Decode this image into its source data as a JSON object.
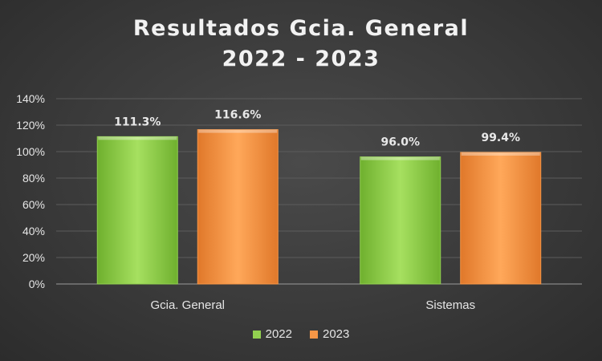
{
  "chart_data": {
    "type": "bar",
    "title": [
      "Resultados Gcia. General",
      "2022 - 2023"
    ],
    "categories": [
      "Gcia. General",
      "Sistemas"
    ],
    "series": [
      {
        "name": "2022",
        "values": [
          1.113,
          0.96
        ],
        "labels": [
          "111.3%",
          "96.0%"
        ],
        "color": "#92d050"
      },
      {
        "name": "2023",
        "values": [
          1.166,
          0.994
        ],
        "labels": [
          "116.6%",
          "99.4%"
        ],
        "color": "#f79646"
      }
    ],
    "ylim": [
      0,
      1.4
    ],
    "yticks": [
      0,
      0.2,
      0.4,
      0.6,
      0.8,
      1.0,
      1.2,
      1.4
    ],
    "ytick_labels": [
      "0%",
      "20%",
      "40%",
      "60%",
      "80%",
      "100%",
      "120%",
      "140%"
    ],
    "grid": true,
    "legend_position": "bottom",
    "xlabel": "",
    "ylabel": ""
  }
}
